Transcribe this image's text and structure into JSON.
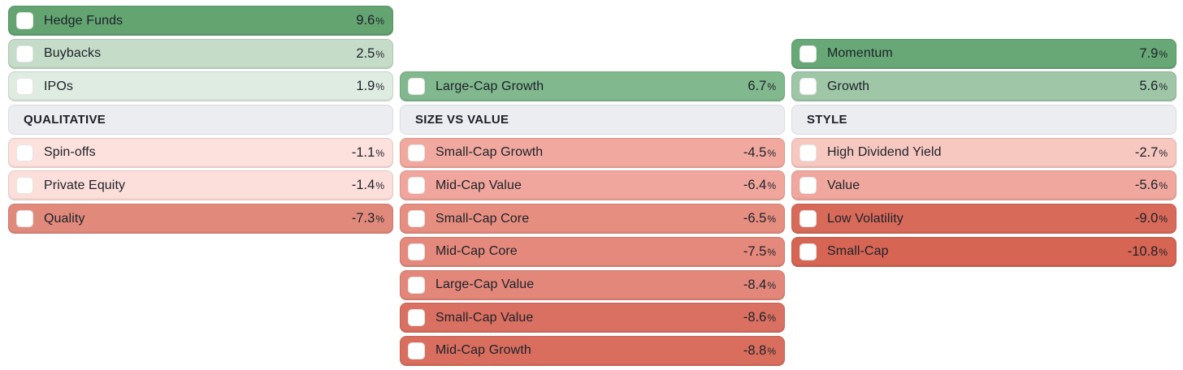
{
  "percent_sign": "%",
  "theme": {
    "page_background": "#ffffff",
    "header_bg": "#ecedf0",
    "header_border": "#d9dce1",
    "positive_max_color": "#63a471",
    "negative_max_color": "#d66553",
    "text_color": "#1d212a"
  },
  "columns": [
    {
      "id": "qualitative",
      "header": {
        "label": "QUALITATIVE",
        "bg": "#ecedf0"
      },
      "items": [
        {
          "label": "Hedge Funds",
          "value": "9.6",
          "color": "#63a471"
        },
        {
          "label": "Buybacks",
          "value": "2.5",
          "color": "#c5dcc8"
        },
        {
          "label": "IPOs",
          "value": "1.9",
          "color": "#dfece1"
        },
        {
          "label": "Spin-offs",
          "value": "-1.1",
          "color": "#fce1dc"
        },
        {
          "label": "Private Equity",
          "value": "-1.4",
          "color": "#fcdfda"
        },
        {
          "label": "Quality",
          "value": "-7.3",
          "color": "#e18a7c"
        }
      ]
    },
    {
      "id": "size-vs-value",
      "header": {
        "label": "SIZE VS VALUE",
        "bg": "#ecedf0"
      },
      "items": [
        {
          "label": "Large-Cap Growth",
          "value": "6.7",
          "color": "#81b88d"
        },
        {
          "label": "Small-Cap Growth",
          "value": "-4.5",
          "color": "#f1a99f"
        },
        {
          "label": "Mid-Cap Value",
          "value": "-6.4",
          "color": "#f0a69c"
        },
        {
          "label": "Small-Cap Core",
          "value": "-6.5",
          "color": "#e68e80"
        },
        {
          "label": "Mid-Cap Core",
          "value": "-7.5",
          "color": "#e4897b"
        },
        {
          "label": "Large-Cap Value",
          "value": "-8.4",
          "color": "#e3877a"
        },
        {
          "label": "Small-Cap Value",
          "value": "-8.6",
          "color": "#da7061"
        },
        {
          "label": "Mid-Cap Growth",
          "value": "-8.8",
          "color": "#d96e5e"
        }
      ]
    },
    {
      "id": "style",
      "header": {
        "label": "STYLE",
        "bg": "#ecedf0"
      },
      "items": [
        {
          "label": "Momentum",
          "value": "7.9",
          "color": "#68a876"
        },
        {
          "label": "Growth",
          "value": "5.6",
          "color": "#9fc7a7"
        },
        {
          "label": "High Dividend Yield",
          "value": "-2.7",
          "color": "#f7c8c0"
        },
        {
          "label": "Value",
          "value": "-5.6",
          "color": "#f0a89e"
        },
        {
          "label": "Low Volatility",
          "value": "-9.0",
          "color": "#d86a5a"
        },
        {
          "label": "Small-Cap",
          "value": "-10.8",
          "color": "#d66553"
        }
      ]
    }
  ]
}
